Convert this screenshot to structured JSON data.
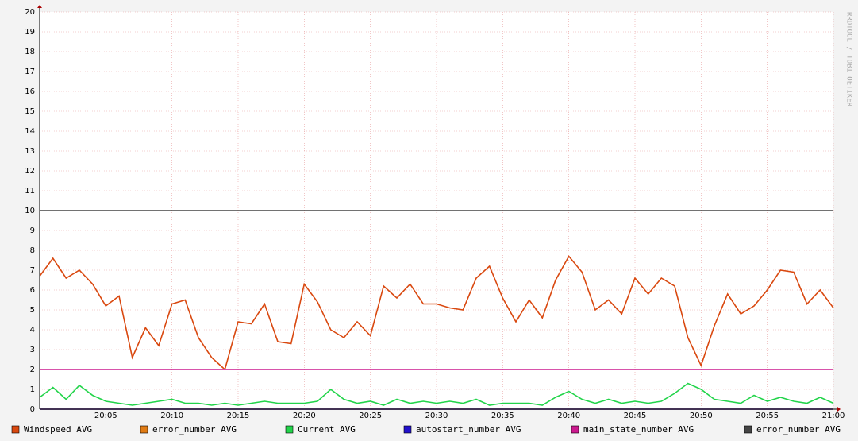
{
  "chart_data": {
    "type": "line",
    "watermark": "RRDTOOL / TOBI OETIKER",
    "x": [
      "20:00",
      "20:01",
      "20:02",
      "20:03",
      "20:04",
      "20:05",
      "20:06",
      "20:07",
      "20:08",
      "20:09",
      "20:10",
      "20:11",
      "20:12",
      "20:13",
      "20:14",
      "20:15",
      "20:16",
      "20:17",
      "20:18",
      "20:19",
      "20:20",
      "20:21",
      "20:22",
      "20:23",
      "20:24",
      "20:25",
      "20:26",
      "20:27",
      "20:28",
      "20:29",
      "20:30",
      "20:31",
      "20:32",
      "20:33",
      "20:34",
      "20:35",
      "20:36",
      "20:37",
      "20:38",
      "20:39",
      "20:40",
      "20:41",
      "20:42",
      "20:43",
      "20:44",
      "20:45",
      "20:46",
      "20:47",
      "20:48",
      "20:49",
      "20:50",
      "20:51",
      "20:52",
      "20:53",
      "20:54",
      "20:55",
      "20:56",
      "20:57",
      "20:58",
      "20:59",
      "21:00"
    ],
    "xlim": [
      "20:00",
      "21:00"
    ],
    "xticks": [
      "20:05",
      "20:10",
      "20:15",
      "20:20",
      "20:25",
      "20:30",
      "20:35",
      "20:40",
      "20:45",
      "20:50",
      "20:55",
      "21:00"
    ],
    "ylim": [
      0,
      20
    ],
    "yticks": [
      0,
      1,
      2,
      3,
      4,
      5,
      6,
      7,
      8,
      9,
      10,
      11,
      12,
      13,
      14,
      15,
      16,
      17,
      18,
      19,
      20
    ],
    "grid": true,
    "series": [
      {
        "name": "Windspeed AVG",
        "color": "#d9480f",
        "values": [
          6.7,
          7.6,
          6.6,
          7.0,
          6.3,
          5.2,
          5.7,
          2.6,
          4.1,
          3.2,
          5.3,
          5.5,
          3.6,
          2.6,
          2.0,
          4.4,
          4.3,
          5.3,
          3.4,
          3.3,
          6.3,
          5.4,
          4.0,
          3.6,
          4.4,
          3.7,
          6.2,
          5.6,
          6.3,
          5.3,
          5.3,
          5.1,
          5.0,
          6.6,
          7.2,
          5.6,
          4.4,
          5.5,
          4.6,
          6.5,
          7.7,
          6.9,
          5.0,
          5.5,
          4.8,
          6.6,
          5.8,
          6.6,
          6.2,
          3.6,
          2.2,
          4.2,
          5.8,
          4.8,
          5.2,
          6.0,
          7.0,
          6.9,
          5.3,
          6.0,
          5.1
        ]
      },
      {
        "name": "error_number AVG",
        "color": "#e07b14",
        "values": [
          0,
          0,
          0,
          0,
          0,
          0,
          0,
          0,
          0,
          0,
          0,
          0,
          0,
          0,
          0,
          0,
          0,
          0,
          0,
          0,
          0,
          0,
          0,
          0,
          0,
          0,
          0,
          0,
          0,
          0,
          0,
          0,
          0,
          0,
          0,
          0,
          0,
          0,
          0,
          0,
          0,
          0,
          0,
          0,
          0,
          0,
          0,
          0,
          0,
          0,
          0,
          0,
          0,
          0,
          0,
          0,
          0,
          0,
          0,
          0,
          0
        ]
      },
      {
        "name": "Current AVG",
        "color": "#22d44a",
        "values": [
          0.6,
          1.1,
          0.5,
          1.2,
          0.7,
          0.4,
          0.3,
          0.2,
          0.3,
          0.4,
          0.5,
          0.3,
          0.3,
          0.2,
          0.3,
          0.2,
          0.3,
          0.4,
          0.3,
          0.3,
          0.3,
          0.4,
          1.0,
          0.5,
          0.3,
          0.4,
          0.2,
          0.5,
          0.3,
          0.4,
          0.3,
          0.4,
          0.3,
          0.5,
          0.2,
          0.3,
          0.3,
          0.3,
          0.2,
          0.6,
          0.9,
          0.5,
          0.3,
          0.5,
          0.3,
          0.4,
          0.3,
          0.4,
          0.8,
          1.3,
          1.0,
          0.5,
          0.4,
          0.3,
          0.7,
          0.4,
          0.6,
          0.4,
          0.3,
          0.6,
          0.3
        ]
      },
      {
        "name": "autostart_number AVG",
        "color": "#2211cc",
        "values": [
          0,
          0,
          0,
          0,
          0,
          0,
          0,
          0,
          0,
          0,
          0,
          0,
          0,
          0,
          0,
          0,
          0,
          0,
          0,
          0,
          0,
          0,
          0,
          0,
          0,
          0,
          0,
          0,
          0,
          0,
          0,
          0,
          0,
          0,
          0,
          0,
          0,
          0,
          0,
          0,
          0,
          0,
          0,
          0,
          0,
          0,
          0,
          0,
          0,
          0,
          0,
          0,
          0,
          0,
          0,
          0,
          0,
          0,
          0,
          0,
          0
        ]
      },
      {
        "name": "main_state_number AVG",
        "color": "#cc1a8f",
        "values": [
          2,
          2,
          2,
          2,
          2,
          2,
          2,
          2,
          2,
          2,
          2,
          2,
          2,
          2,
          2,
          2,
          2,
          2,
          2,
          2,
          2,
          2,
          2,
          2,
          2,
          2,
          2,
          2,
          2,
          2,
          2,
          2,
          2,
          2,
          2,
          2,
          2,
          2,
          2,
          2,
          2,
          2,
          2,
          2,
          2,
          2,
          2,
          2,
          2,
          2,
          2,
          2,
          2,
          2,
          2,
          2,
          2,
          2,
          2,
          2,
          2
        ]
      },
      {
        "name": "error_number AVG",
        "color": "#444444",
        "values": [
          10,
          10,
          10,
          10,
          10,
          10,
          10,
          10,
          10,
          10,
          10,
          10,
          10,
          10,
          10,
          10,
          10,
          10,
          10,
          10,
          10,
          10,
          10,
          10,
          10,
          10,
          10,
          10,
          10,
          10,
          10,
          10,
          10,
          10,
          10,
          10,
          10,
          10,
          10,
          10,
          10,
          10,
          10,
          10,
          10,
          10,
          10,
          10,
          10,
          10,
          10,
          10,
          10,
          10,
          10,
          10,
          10,
          10,
          10,
          10,
          10
        ]
      }
    ]
  }
}
